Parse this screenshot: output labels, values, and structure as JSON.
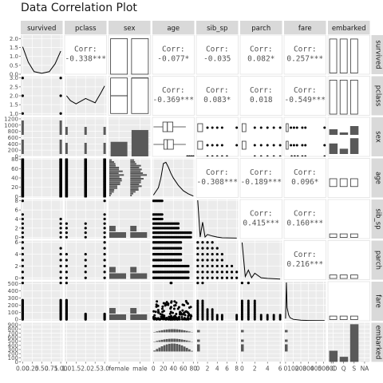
{
  "chart_data": {
    "type": "scatter",
    "title": "Data Correlation Plot",
    "variables": [
      "survived",
      "pclass",
      "sex",
      "age",
      "sib_sp",
      "parch",
      "fare",
      "embarked"
    ],
    "correlations": [
      {
        "row": "survived",
        "col": "pclass",
        "label": "Corr:",
        "value": "-0.338***"
      },
      {
        "row": "survived",
        "col": "age",
        "label": "Corr:",
        "value": "-0.077*"
      },
      {
        "row": "survived",
        "col": "sib_sp",
        "label": "Corr:",
        "value": "-0.035"
      },
      {
        "row": "survived",
        "col": "parch",
        "label": "Corr:",
        "value": "0.082*"
      },
      {
        "row": "survived",
        "col": "fare",
        "label": "Corr:",
        "value": "0.257***"
      },
      {
        "row": "pclass",
        "col": "age",
        "label": "Corr:",
        "value": "-0.369***"
      },
      {
        "row": "pclass",
        "col": "sib_sp",
        "label": "Corr:",
        "value": "0.083*"
      },
      {
        "row": "pclass",
        "col": "parch",
        "label": "Corr:",
        "value": "0.018"
      },
      {
        "row": "pclass",
        "col": "fare",
        "label": "Corr:",
        "value": "-0.549***"
      },
      {
        "row": "age",
        "col": "sib_sp",
        "label": "Corr:",
        "value": "-0.308***"
      },
      {
        "row": "age",
        "col": "parch",
        "label": "Corr:",
        "value": "-0.189***"
      },
      {
        "row": "age",
        "col": "fare",
        "label": "Corr:",
        "value": "0.096*"
      },
      {
        "row": "sib_sp",
        "col": "parch",
        "label": "Corr:",
        "value": "0.415***"
      },
      {
        "row": "sib_sp",
        "col": "fare",
        "label": "Corr:",
        "value": "0.160***"
      },
      {
        "row": "parch",
        "col": "fare",
        "label": "Corr:",
        "value": "0.216***"
      }
    ],
    "row_ticks": [
      {
        "row": "survived",
        "ticks": [
          "0.0",
          "0.5",
          "1.0",
          "1.5",
          "2.0"
        ],
        "values": [
          0.0,
          0.5,
          1.0,
          1.5,
          2.0
        ],
        "range": [
          0.0,
          2.2
        ]
      },
      {
        "row": "pclass",
        "ticks": [
          "1.0",
          "1.5",
          "2.0",
          "2.5",
          "3.0"
        ],
        "values": [
          1.0,
          1.5,
          2.0,
          2.5,
          3.0
        ],
        "range": [
          0.9,
          3.1
        ]
      },
      {
        "row": "sex",
        "ticks": [
          "0",
          "200",
          "400",
          "600",
          "800",
          "1000",
          "1200"
        ],
        "values": [
          0,
          200,
          400,
          600,
          800,
          1000,
          1200
        ],
        "range": [
          0,
          1250
        ]
      },
      {
        "row": "age",
        "ticks": [
          "0",
          "20",
          "40",
          "60",
          "80"
        ],
        "values": [
          0,
          20,
          40,
          60,
          80
        ],
        "range": [
          -2,
          82
        ]
      },
      {
        "row": "sib_sp",
        "ticks": [
          "0",
          "2",
          "4",
          "6",
          "8"
        ],
        "values": [
          0,
          2,
          4,
          6,
          8
        ],
        "range": [
          -0.3,
          8.3
        ]
      },
      {
        "row": "parch",
        "ticks": [
          "0",
          "2",
          "4",
          "6"
        ],
        "values": [
          0,
          2,
          4,
          6
        ],
        "range": [
          -0.3,
          6.3
        ]
      },
      {
        "row": "fare",
        "ticks": [
          "0",
          "100",
          "200",
          "300",
          "400",
          "500"
        ],
        "values": [
          0,
          100,
          200,
          300,
          400,
          500
        ],
        "range": [
          -20,
          530
        ]
      },
      {
        "row": "embarked",
        "ticks": [
          "0",
          "100",
          "200",
          "300",
          "400",
          "500",
          "600",
          "700",
          "800",
          "900"
        ],
        "values": [
          0,
          100,
          200,
          300,
          400,
          500,
          600,
          700,
          800,
          900
        ],
        "range": [
          0,
          950
        ]
      }
    ],
    "col_ticks": [
      {
        "col": "survived",
        "ticks": [
          "0.00",
          "0.25",
          "0.50",
          "0.75",
          "1.00"
        ],
        "values": [
          0.0,
          0.25,
          0.5,
          0.75,
          1.0
        ],
        "range": [
          -0.05,
          1.05
        ]
      },
      {
        "col": "pclass",
        "ticks": [
          "1.0",
          "1.5",
          "2.0",
          "2.5",
          "3.0"
        ],
        "values": [
          1.0,
          1.5,
          2.0,
          2.5,
          3.0
        ],
        "range": [
          0.9,
          3.1
        ]
      },
      {
        "col": "sex",
        "ticks": [
          "female",
          "male"
        ],
        "values": [
          0.25,
          0.75
        ],
        "range": [
          0,
          1
        ]
      },
      {
        "col": "age",
        "ticks": [
          "0",
          "20",
          "40",
          "60",
          "80"
        ],
        "values": [
          0,
          20,
          40,
          60,
          80
        ],
        "range": [
          -2,
          82
        ]
      },
      {
        "col": "sib_sp",
        "ticks": [
          "0",
          "2",
          "4",
          "6",
          "8"
        ],
        "values": [
          0,
          2,
          4,
          6,
          8
        ],
        "range": [
          -0.3,
          8.3
        ]
      },
      {
        "col": "parch",
        "ticks": [
          "0",
          "2",
          "4",
          "6"
        ],
        "values": [
          0,
          2,
          4,
          6
        ],
        "range": [
          -0.3,
          6.3
        ]
      },
      {
        "col": "fare",
        "ticks": [
          "0",
          "100",
          "200",
          "300",
          "400",
          "500",
          "600"
        ],
        "values": [
          0,
          100,
          200,
          300,
          400,
          500,
          600
        ],
        "range": [
          -20,
          530
        ]
      },
      {
        "col": "embarked",
        "ticks": [
          "C",
          "Q",
          "S",
          "NA"
        ],
        "values": [
          0.125,
          0.375,
          0.625,
          0.875
        ],
        "range": [
          0,
          1
        ]
      }
    ],
    "survived_density": {
      "x": [
        0.0,
        0.15,
        0.3,
        0.5,
        0.7,
        0.85,
        1.0
      ],
      "y": [
        1.6,
        0.7,
        0.15,
        0.05,
        0.15,
        0.6,
        1.35
      ]
    },
    "pclass_density": {
      "x": [
        1.0,
        1.2,
        1.5,
        2.0,
        2.5,
        2.8,
        3.0
      ],
      "y": [
        1.8,
        1.35,
        1.05,
        1.55,
        1.15,
        2.05,
        2.7
      ]
    },
    "sex_counts": {
      "categories": [
        "female",
        "male"
      ],
      "values": [
        466,
        843
      ]
    },
    "age_density": {
      "x": [
        0,
        5,
        10,
        15,
        20,
        25,
        30,
        35,
        40,
        50,
        60,
        70,
        80
      ],
      "y": [
        0.2,
        0.5,
        0.8,
        1.6,
        2.8,
        2.9,
        2.5,
        2.0,
        1.6,
        1.0,
        0.55,
        0.3,
        0.12
      ]
    },
    "sib_sp_density": {
      "x": [
        0,
        0.5,
        1,
        1.5,
        2,
        3,
        4,
        5,
        8
      ],
      "y": [
        7.5,
        0.3,
        3.2,
        0.3,
        0.8,
        0.5,
        0.3,
        0.15,
        0.1
      ]
    },
    "parch_density": {
      "x": [
        0,
        0.5,
        1,
        1.5,
        2,
        3,
        4,
        6
      ],
      "y": [
        5.8,
        0.5,
        1.5,
        0.3,
        1.0,
        0.3,
        0.2,
        0.1
      ]
    },
    "fare_density": {
      "x": [
        0,
        10,
        20,
        40,
        60,
        100,
        200,
        300,
        512
      ],
      "y": [
        30,
        520,
        180,
        80,
        40,
        20,
        8,
        4,
        2
      ]
    },
    "embarked_counts": {
      "categories": [
        "C",
        "Q",
        "S",
        "NA"
      ],
      "values": [
        270,
        123,
        914,
        2
      ]
    }
  }
}
